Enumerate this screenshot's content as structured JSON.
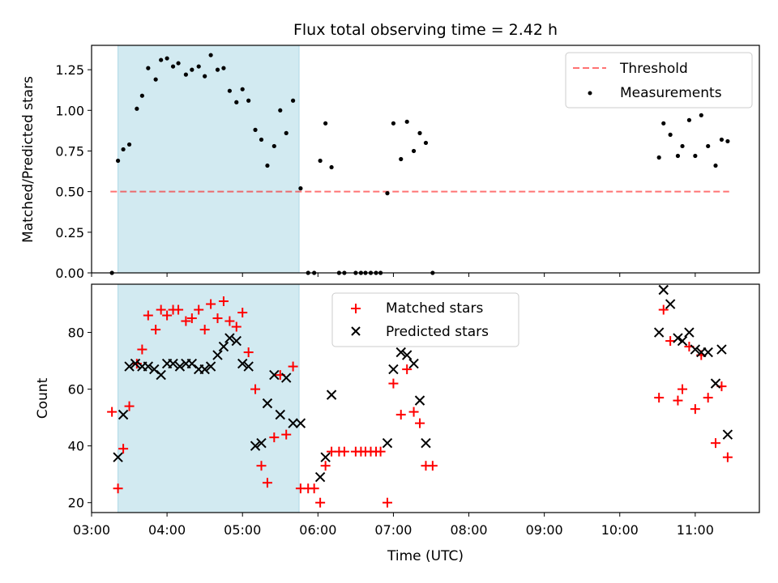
{
  "title": "Flux total observing time = 2.42 h",
  "colors": {
    "band": "#add8e6",
    "threshold": "#ff0000",
    "matched": "#ff0000",
    "predicted": "#000000",
    "points": "#000000"
  },
  "chart_data": [
    {
      "type": "scatter",
      "ylabel": "Matched/Predicted stars",
      "ylim": [
        0,
        1.4
      ],
      "yticks": [
        "0.00",
        "0.25",
        "0.50",
        "0.75",
        "1.00",
        "1.25"
      ],
      "xlim": [
        3.0,
        11.85
      ],
      "highlight_span": [
        3.35,
        5.75
      ],
      "threshold": {
        "label": "Threshold",
        "y": 0.5,
        "x": [
          3.25,
          11.45
        ],
        "style": "dashed"
      },
      "series": [
        {
          "name": "Measurements",
          "x": [
            3.27,
            3.35,
            3.42,
            3.5,
            3.6,
            3.67,
            3.75,
            3.85,
            3.92,
            4.0,
            4.08,
            4.15,
            4.25,
            4.33,
            4.42,
            4.5,
            4.58,
            4.67,
            4.75,
            4.83,
            4.92,
            5.0,
            5.08,
            5.17,
            5.25,
            5.33,
            5.42,
            5.5,
            5.58,
            5.67,
            5.77,
            5.87,
            5.95,
            6.03,
            6.1,
            6.18,
            6.28,
            6.35,
            6.5,
            6.57,
            6.63,
            6.7,
            6.77,
            6.83,
            6.92,
            7.0,
            7.1,
            7.18,
            7.27,
            7.35,
            7.43,
            7.52,
            10.52,
            10.58,
            10.67,
            10.77,
            10.83,
            10.92,
            11.0,
            11.08,
            11.17,
            11.27,
            11.35,
            11.43
          ],
          "y": [
            0,
            0.69,
            0.76,
            0.79,
            1.01,
            1.09,
            1.26,
            1.19,
            1.31,
            1.32,
            1.27,
            1.29,
            1.22,
            1.25,
            1.27,
            1.21,
            1.34,
            1.25,
            1.26,
            1.12,
            1.05,
            1.13,
            1.06,
            0.88,
            0.82,
            0.66,
            0.78,
            1.0,
            0.86,
            1.06,
            0.52,
            0,
            0,
            0.69,
            0.92,
            0.65,
            0,
            0,
            0,
            0,
            0,
            0,
            0,
            0,
            0.49,
            0.92,
            0.7,
            0.93,
            0.75,
            0.86,
            0.8,
            0,
            0.71,
            0.92,
            0.85,
            0.72,
            0.78,
            0.94,
            0.72,
            0.97,
            0.78,
            0.66,
            0.82,
            0.81
          ]
        }
      ]
    },
    {
      "type": "scatter",
      "ylabel": "Count",
      "xlabel": "Time (UTC)",
      "ylim": [
        16.5,
        97
      ],
      "yticks": [
        "20",
        "40",
        "60",
        "80"
      ],
      "xlim": [
        3.0,
        11.85
      ],
      "xticks": [
        "03:00",
        "04:00",
        "05:00",
        "06:00",
        "07:00",
        "08:00",
        "09:00",
        "10:00",
        "11:00"
      ],
      "highlight_span": [
        3.35,
        5.75
      ],
      "series": [
        {
          "name": "Matched stars",
          "marker": "+",
          "x": [
            3.27,
            3.35,
            3.42,
            3.5,
            3.6,
            3.67,
            3.75,
            3.85,
            3.92,
            4.0,
            4.08,
            4.15,
            4.25,
            4.33,
            4.42,
            4.5,
            4.58,
            4.67,
            4.75,
            4.83,
            4.92,
            5.0,
            5.08,
            5.17,
            5.25,
            5.33,
            5.42,
            5.5,
            5.58,
            5.67,
            5.77,
            5.87,
            5.95,
            6.03,
            6.1,
            6.18,
            6.28,
            6.35,
            6.5,
            6.57,
            6.63,
            6.7,
            6.77,
            6.83,
            6.92,
            7.0,
            7.1,
            7.18,
            7.27,
            7.35,
            7.43,
            7.52,
            10.52,
            10.58,
            10.67,
            10.77,
            10.83,
            10.92,
            11.0,
            11.08,
            11.17,
            11.27,
            11.35,
            11.43
          ],
          "y": [
            52,
            25,
            39,
            54,
            69,
            74,
            86,
            81,
            88,
            86,
            88,
            88,
            84,
            85,
            88,
            81,
            90,
            85,
            91,
            84,
            82,
            87,
            73,
            60,
            33,
            27,
            43,
            65,
            44,
            68,
            25,
            25,
            25,
            20,
            33,
            38,
            38,
            38,
            38,
            38,
            38,
            38,
            38,
            38,
            20,
            62,
            51,
            67,
            52,
            48,
            33,
            33,
            57,
            88,
            77,
            56,
            60,
            75,
            53,
            72,
            57,
            41,
            61,
            36
          ]
        },
        {
          "name": "Predicted stars",
          "marker": "x",
          "x": [
            3.35,
            3.42,
            3.5,
            3.58,
            3.67,
            3.75,
            3.83,
            3.92,
            4.0,
            4.08,
            4.17,
            4.25,
            4.33,
            4.42,
            4.5,
            4.58,
            4.67,
            4.75,
            4.83,
            4.92,
            5.0,
            5.08,
            5.17,
            5.25,
            5.33,
            5.42,
            5.5,
            5.58,
            5.67,
            5.77,
            6.03,
            6.1,
            6.18,
            6.92,
            7.0,
            7.1,
            7.18,
            7.27,
            7.35,
            7.43,
            10.52,
            10.58,
            10.67,
            10.77,
            10.83,
            10.92,
            11.0,
            11.08,
            11.17,
            11.27,
            11.35,
            11.43
          ],
          "y": [
            36,
            51,
            68,
            69,
            68,
            68,
            67,
            65,
            69,
            69,
            68,
            69,
            69,
            67,
            67,
            68,
            72,
            75,
            78,
            77,
            69,
            68,
            40,
            41,
            55,
            65,
            51,
            64,
            48,
            48,
            29,
            36,
            58,
            41,
            67,
            73,
            72,
            69,
            56,
            41,
            80,
            95,
            90,
            78,
            77,
            80,
            74,
            73,
            73,
            62,
            74,
            44
          ]
        }
      ]
    }
  ]
}
